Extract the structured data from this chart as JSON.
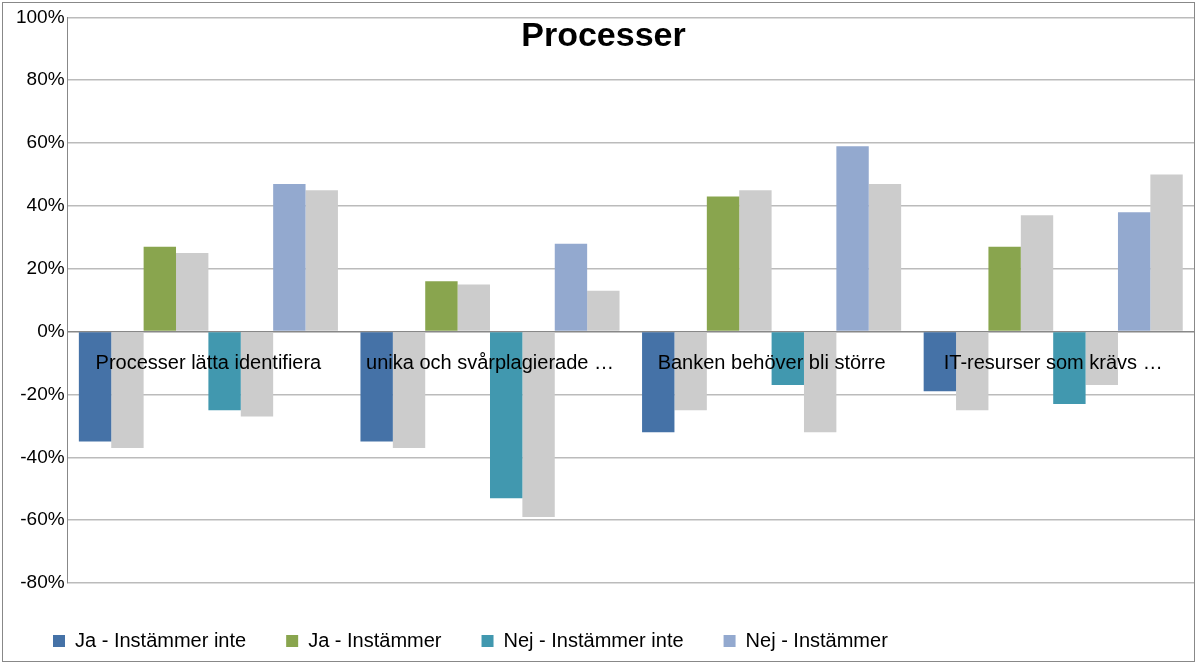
{
  "chart_data": {
    "type": "bar",
    "title": "Processer",
    "categories": [
      "Processer lätta identifiera",
      "unika och svårplagierade …",
      "Banken behöver bli större",
      "IT-resurser som krävs …"
    ],
    "series": [
      {
        "name": "Ja - Instämmer inte",
        "color": "#4572a7",
        "values": [
          -35,
          -35,
          -32,
          -19
        ]
      },
      {
        "color": "#cccccc",
        "values": [
          -37,
          -37,
          -25,
          -25
        ]
      },
      {
        "name": "Ja - Instämmer",
        "color": "#89a54e",
        "values": [
          27,
          16,
          43,
          27
        ]
      },
      {
        "color": "#cccccc",
        "values": [
          25,
          15,
          45,
          37
        ]
      },
      {
        "name": "Nej - Instämmer inte",
        "color": "#4198af",
        "values": [
          -25,
          -53,
          -17,
          -23
        ]
      },
      {
        "color": "#cccccc",
        "values": [
          -27,
          -59,
          -32,
          -17
        ]
      },
      {
        "name": "Nej - Instämmer",
        "color": "#93a9cf",
        "values": [
          47,
          28,
          59,
          38
        ]
      },
      {
        "color": "#cccccc",
        "values": [
          45,
          13,
          47,
          50
        ]
      }
    ],
    "ylim": [
      -80,
      100
    ],
    "yticks": [
      {
        "value": -80,
        "label": "-80%"
      },
      {
        "value": -60,
        "label": "-60%"
      },
      {
        "value": -40,
        "label": "-40%"
      },
      {
        "value": -20,
        "label": "-20%"
      },
      {
        "value": 0,
        "label": "0%"
      },
      {
        "value": 20,
        "label": "20%"
      },
      {
        "value": 40,
        "label": "40%"
      },
      {
        "value": 60,
        "label": "60%"
      },
      {
        "value": 80,
        "label": "80%"
      },
      {
        "value": 100,
        "label": "100%"
      }
    ],
    "grid": "y",
    "legend": "bottom"
  }
}
